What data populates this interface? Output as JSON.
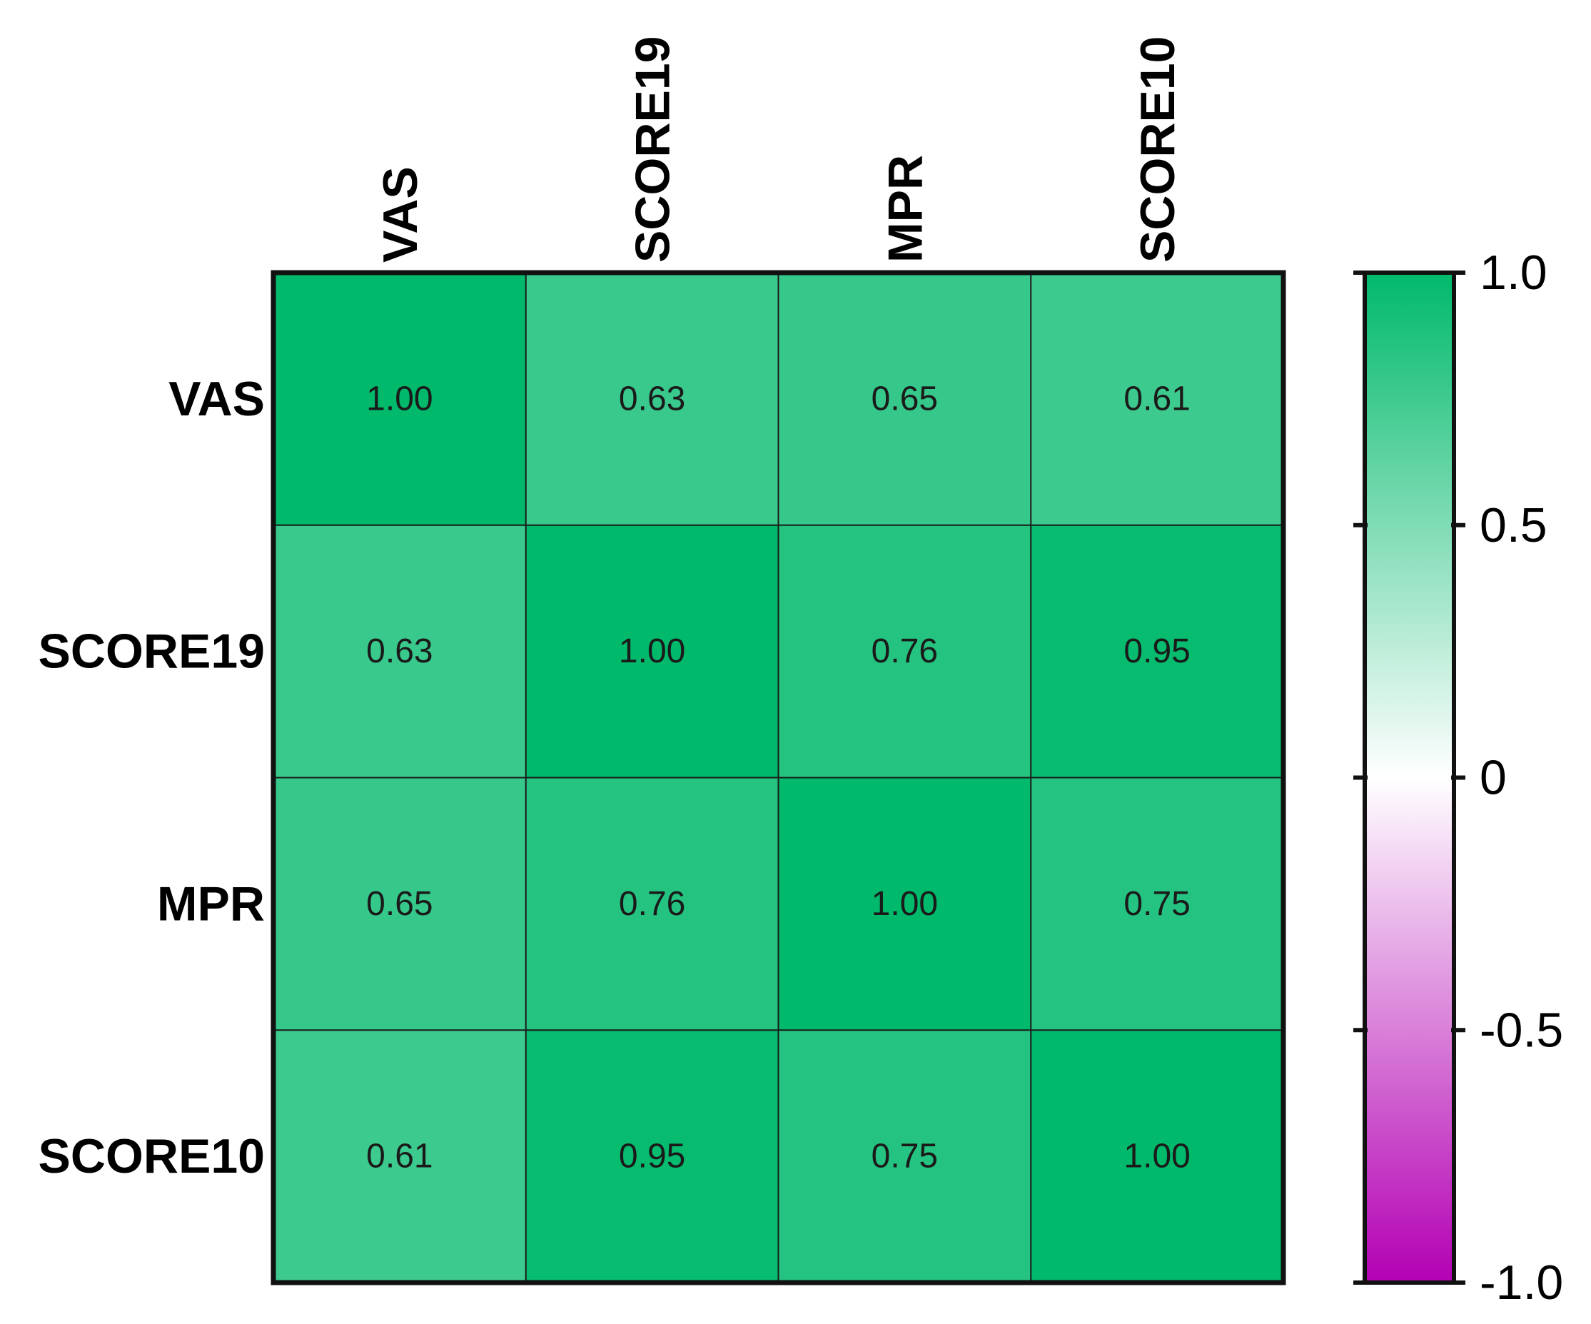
{
  "chart_data": {
    "type": "heatmap",
    "title": "",
    "xlabel": "",
    "ylabel": "",
    "row_labels": [
      "VAS",
      "SCORE19",
      "MPR",
      "SCORE10"
    ],
    "col_labels": [
      "VAS",
      "SCORE19",
      "MPR",
      "SCORE10"
    ],
    "values": [
      [
        1.0,
        0.63,
        0.65,
        0.61
      ],
      [
        0.63,
        1.0,
        0.76,
        0.95
      ],
      [
        0.65,
        0.76,
        1.0,
        0.75
      ],
      [
        0.61,
        0.95,
        0.75,
        1.0
      ]
    ],
    "cell_labels": [
      [
        "1.00",
        "0.63",
        "0.65",
        "0.61"
      ],
      [
        "0.63",
        "1.00",
        "0.76",
        "0.95"
      ],
      [
        "0.65",
        "0.76",
        "1.00",
        "0.75"
      ],
      [
        "0.61",
        "0.95",
        "0.75",
        "1.00"
      ]
    ],
    "colorbar": {
      "range": [
        -1.0,
        1.0
      ],
      "ticks": [
        1.0,
        0.5,
        0,
        -0.5,
        -1.0
      ],
      "tick_labels": [
        "1.0",
        "0.5",
        "0",
        "-0.5",
        "-1.0"
      ],
      "colors": {
        "high": "#00b96b",
        "mid": "#ffffff",
        "low": "#b300b3"
      }
    },
    "legend": "right"
  }
}
